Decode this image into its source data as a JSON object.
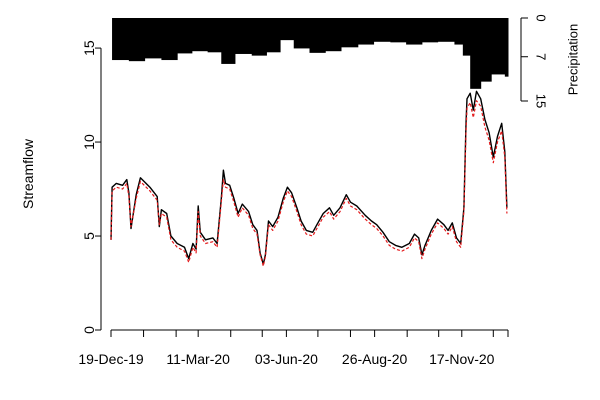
{
  "chart_data": {
    "type": "line",
    "title": "",
    "xlabel": "",
    "ylabel": "Streamflow",
    "ylim": [
      0,
      16.6
    ],
    "yticks": [
      0,
      5,
      10,
      15
    ],
    "x_range": [
      "2019-12-19",
      "2020-12-31"
    ],
    "xticks": [
      {
        "date": "2019-12-19",
        "label": "19-Dec-19"
      },
      {
        "date": "2020-01-19",
        "label": ""
      },
      {
        "date": "2020-02-19",
        "label": ""
      },
      {
        "date": "2020-03-11",
        "label": "11-Mar-20"
      },
      {
        "date": "2020-04-11",
        "label": ""
      },
      {
        "date": "2020-05-11",
        "label": ""
      },
      {
        "date": "2020-06-03",
        "label": "03-Jun-20"
      },
      {
        "date": "2020-07-03",
        "label": ""
      },
      {
        "date": "2020-08-03",
        "label": ""
      },
      {
        "date": "2020-08-26",
        "label": "26-Aug-20"
      },
      {
        "date": "2020-09-26",
        "label": ""
      },
      {
        "date": "2020-10-26",
        "label": ""
      },
      {
        "date": "2020-11-17",
        "label": "17-Nov-20"
      },
      {
        "date": "2020-12-17",
        "label": ""
      },
      {
        "date": "2020-12-31",
        "label": ""
      }
    ],
    "grid": false,
    "legend": "none",
    "series": [
      {
        "style": "solid",
        "color": "#000000",
        "points": [
          {
            "x": "2019-12-19",
            "y": 4.8
          },
          {
            "x": "2019-12-20",
            "y": 7.6
          },
          {
            "x": "2019-12-24",
            "y": 7.8
          },
          {
            "x": "2019-12-30",
            "y": 7.7
          },
          {
            "x": "2020-01-03",
            "y": 8.0
          },
          {
            "x": "2020-01-05",
            "y": 7.3
          },
          {
            "x": "2020-01-07",
            "y": 5.4
          },
          {
            "x": "2020-01-12",
            "y": 7.2
          },
          {
            "x": "2020-01-16",
            "y": 8.1
          },
          {
            "x": "2020-01-25",
            "y": 7.6
          },
          {
            "x": "2020-02-01",
            "y": 7.1
          },
          {
            "x": "2020-02-03",
            "y": 5.5
          },
          {
            "x": "2020-02-05",
            "y": 6.4
          },
          {
            "x": "2020-02-10",
            "y": 6.2
          },
          {
            "x": "2020-02-14",
            "y": 5.0
          },
          {
            "x": "2020-02-20",
            "y": 4.6
          },
          {
            "x": "2020-02-27",
            "y": 4.4
          },
          {
            "x": "2020-03-02",
            "y": 3.8
          },
          {
            "x": "2020-03-06",
            "y": 4.6
          },
          {
            "x": "2020-03-09",
            "y": 4.3
          },
          {
            "x": "2020-03-11",
            "y": 6.6
          },
          {
            "x": "2020-03-13",
            "y": 5.2
          },
          {
            "x": "2020-03-18",
            "y": 4.8
          },
          {
            "x": "2020-03-25",
            "y": 4.9
          },
          {
            "x": "2020-03-29",
            "y": 4.6
          },
          {
            "x": "2020-04-02",
            "y": 7.0
          },
          {
            "x": "2020-04-04",
            "y": 8.5
          },
          {
            "x": "2020-04-06",
            "y": 7.8
          },
          {
            "x": "2020-04-10",
            "y": 7.7
          },
          {
            "x": "2020-04-14",
            "y": 7.0
          },
          {
            "x": "2020-04-18",
            "y": 6.2
          },
          {
            "x": "2020-04-22",
            "y": 6.7
          },
          {
            "x": "2020-04-28",
            "y": 6.3
          },
          {
            "x": "2020-05-02",
            "y": 5.6
          },
          {
            "x": "2020-05-06",
            "y": 5.3
          },
          {
            "x": "2020-05-09",
            "y": 4.1
          },
          {
            "x": "2020-05-12",
            "y": 3.5
          },
          {
            "x": "2020-05-14",
            "y": 4.0
          },
          {
            "x": "2020-05-17",
            "y": 5.8
          },
          {
            "x": "2020-05-21",
            "y": 5.5
          },
          {
            "x": "2020-05-26",
            "y": 6.0
          },
          {
            "x": "2020-05-31",
            "y": 7.0
          },
          {
            "x": "2020-06-04",
            "y": 7.6
          },
          {
            "x": "2020-06-08",
            "y": 7.3
          },
          {
            "x": "2020-06-13",
            "y": 6.5
          },
          {
            "x": "2020-06-17",
            "y": 5.8
          },
          {
            "x": "2020-06-22",
            "y": 5.3
          },
          {
            "x": "2020-06-28",
            "y": 5.2
          },
          {
            "x": "2020-07-02",
            "y": 5.6
          },
          {
            "x": "2020-07-08",
            "y": 6.2
          },
          {
            "x": "2020-07-14",
            "y": 6.5
          },
          {
            "x": "2020-07-18",
            "y": 6.1
          },
          {
            "x": "2020-07-24",
            "y": 6.5
          },
          {
            "x": "2020-07-30",
            "y": 7.2
          },
          {
            "x": "2020-08-03",
            "y": 6.8
          },
          {
            "x": "2020-08-09",
            "y": 6.6
          },
          {
            "x": "2020-08-17",
            "y": 6.1
          },
          {
            "x": "2020-08-23",
            "y": 5.8
          },
          {
            "x": "2020-08-28",
            "y": 5.6
          },
          {
            "x": "2020-09-03",
            "y": 5.2
          },
          {
            "x": "2020-09-09",
            "y": 4.7
          },
          {
            "x": "2020-09-15",
            "y": 4.5
          },
          {
            "x": "2020-09-21",
            "y": 4.4
          },
          {
            "x": "2020-09-28",
            "y": 4.6
          },
          {
            "x": "2020-10-03",
            "y": 5.1
          },
          {
            "x": "2020-10-07",
            "y": 4.9
          },
          {
            "x": "2020-10-10",
            "y": 4.0
          },
          {
            "x": "2020-10-13",
            "y": 4.5
          },
          {
            "x": "2020-10-19",
            "y": 5.3
          },
          {
            "x": "2020-10-25",
            "y": 5.9
          },
          {
            "x": "2020-10-31",
            "y": 5.6
          },
          {
            "x": "2020-11-04",
            "y": 5.3
          },
          {
            "x": "2020-11-08",
            "y": 5.7
          },
          {
            "x": "2020-11-12",
            "y": 4.9
          },
          {
            "x": "2020-11-16",
            "y": 4.6
          },
          {
            "x": "2020-11-19",
            "y": 6.5
          },
          {
            "x": "2020-11-21",
            "y": 11.0
          },
          {
            "x": "2020-11-22",
            "y": 12.3
          },
          {
            "x": "2020-11-25",
            "y": 12.6
          },
          {
            "x": "2020-11-28",
            "y": 11.7
          },
          {
            "x": "2020-12-01",
            "y": 12.7
          },
          {
            "x": "2020-12-05",
            "y": 12.3
          },
          {
            "x": "2020-12-09",
            "y": 11.2
          },
          {
            "x": "2020-12-13",
            "y": 10.5
          },
          {
            "x": "2020-12-17",
            "y": 9.2
          },
          {
            "x": "2020-12-21",
            "y": 10.3
          },
          {
            "x": "2020-12-25",
            "y": 11.0
          },
          {
            "x": "2020-12-28",
            "y": 9.5
          },
          {
            "x": "2020-12-30",
            "y": 6.5
          }
        ]
      },
      {
        "style": "dashed",
        "color": "#e41a1c",
        "points": [
          {
            "x": "2019-12-19",
            "y": 4.8
          },
          {
            "x": "2019-12-20",
            "y": 7.4
          },
          {
            "x": "2019-12-24",
            "y": 7.6
          },
          {
            "x": "2019-12-30",
            "y": 7.5
          },
          {
            "x": "2020-01-03",
            "y": 7.8
          },
          {
            "x": "2020-01-05",
            "y": 7.1
          },
          {
            "x": "2020-01-07",
            "y": 5.5
          },
          {
            "x": "2020-01-12",
            "y": 7.0
          },
          {
            "x": "2020-01-16",
            "y": 7.9
          },
          {
            "x": "2020-01-25",
            "y": 7.4
          },
          {
            "x": "2020-02-01",
            "y": 6.9
          },
          {
            "x": "2020-02-03",
            "y": 5.6
          },
          {
            "x": "2020-02-05",
            "y": 6.2
          },
          {
            "x": "2020-02-10",
            "y": 6.0
          },
          {
            "x": "2020-02-14",
            "y": 4.8
          },
          {
            "x": "2020-02-20",
            "y": 4.4
          },
          {
            "x": "2020-02-27",
            "y": 4.2
          },
          {
            "x": "2020-03-02",
            "y": 3.6
          },
          {
            "x": "2020-03-06",
            "y": 4.4
          },
          {
            "x": "2020-03-09",
            "y": 4.1
          },
          {
            "x": "2020-03-11",
            "y": 6.3
          },
          {
            "x": "2020-03-13",
            "y": 5.0
          },
          {
            "x": "2020-03-18",
            "y": 4.6
          },
          {
            "x": "2020-03-25",
            "y": 4.7
          },
          {
            "x": "2020-03-29",
            "y": 4.4
          },
          {
            "x": "2020-04-02",
            "y": 6.8
          },
          {
            "x": "2020-04-04",
            "y": 8.0
          },
          {
            "x": "2020-04-06",
            "y": 7.6
          },
          {
            "x": "2020-04-10",
            "y": 7.5
          },
          {
            "x": "2020-04-14",
            "y": 6.8
          },
          {
            "x": "2020-04-18",
            "y": 6.0
          },
          {
            "x": "2020-04-22",
            "y": 6.5
          },
          {
            "x": "2020-04-28",
            "y": 6.1
          },
          {
            "x": "2020-05-02",
            "y": 5.4
          },
          {
            "x": "2020-05-06",
            "y": 5.1
          },
          {
            "x": "2020-05-09",
            "y": 4.0
          },
          {
            "x": "2020-05-12",
            "y": 3.4
          },
          {
            "x": "2020-05-14",
            "y": 3.9
          },
          {
            "x": "2020-05-17",
            "y": 5.6
          },
          {
            "x": "2020-05-21",
            "y": 5.3
          },
          {
            "x": "2020-05-26",
            "y": 5.8
          },
          {
            "x": "2020-05-31",
            "y": 6.8
          },
          {
            "x": "2020-06-04",
            "y": 7.4
          },
          {
            "x": "2020-06-08",
            "y": 7.1
          },
          {
            "x": "2020-06-13",
            "y": 6.3
          },
          {
            "x": "2020-06-17",
            "y": 5.6
          },
          {
            "x": "2020-06-22",
            "y": 5.1
          },
          {
            "x": "2020-06-28",
            "y": 5.0
          },
          {
            "x": "2020-07-02",
            "y": 5.4
          },
          {
            "x": "2020-07-08",
            "y": 6.0
          },
          {
            "x": "2020-07-14",
            "y": 6.3
          },
          {
            "x": "2020-07-18",
            "y": 5.9
          },
          {
            "x": "2020-07-24",
            "y": 6.3
          },
          {
            "x": "2020-07-30",
            "y": 7.0
          },
          {
            "x": "2020-08-03",
            "y": 6.6
          },
          {
            "x": "2020-08-09",
            "y": 6.4
          },
          {
            "x": "2020-08-17",
            "y": 5.9
          },
          {
            "x": "2020-08-23",
            "y": 5.6
          },
          {
            "x": "2020-08-28",
            "y": 5.4
          },
          {
            "x": "2020-09-03",
            "y": 5.0
          },
          {
            "x": "2020-09-09",
            "y": 4.5
          },
          {
            "x": "2020-09-15",
            "y": 4.3
          },
          {
            "x": "2020-09-21",
            "y": 4.2
          },
          {
            "x": "2020-09-28",
            "y": 4.4
          },
          {
            "x": "2020-10-03",
            "y": 4.9
          },
          {
            "x": "2020-10-07",
            "y": 4.7
          },
          {
            "x": "2020-10-10",
            "y": 3.8
          },
          {
            "x": "2020-10-13",
            "y": 4.3
          },
          {
            "x": "2020-10-19",
            "y": 5.1
          },
          {
            "x": "2020-10-25",
            "y": 5.7
          },
          {
            "x": "2020-10-31",
            "y": 5.4
          },
          {
            "x": "2020-11-04",
            "y": 5.1
          },
          {
            "x": "2020-11-08",
            "y": 5.5
          },
          {
            "x": "2020-11-12",
            "y": 4.7
          },
          {
            "x": "2020-11-16",
            "y": 4.4
          },
          {
            "x": "2020-11-19",
            "y": 6.3
          },
          {
            "x": "2020-11-21",
            "y": 10.5
          },
          {
            "x": "2020-11-22",
            "y": 11.8
          },
          {
            "x": "2020-11-25",
            "y": 12.1
          },
          {
            "x": "2020-11-28",
            "y": 11.3
          },
          {
            "x": "2020-12-01",
            "y": 12.2
          },
          {
            "x": "2020-12-05",
            "y": 11.9
          },
          {
            "x": "2020-12-09",
            "y": 10.8
          },
          {
            "x": "2020-12-13",
            "y": 10.1
          },
          {
            "x": "2020-12-17",
            "y": 8.9
          },
          {
            "x": "2020-12-21",
            "y": 10.0
          },
          {
            "x": "2020-12-25",
            "y": 10.6
          },
          {
            "x": "2020-12-28",
            "y": 9.2
          },
          {
            "x": "2020-12-30",
            "y": 6.2
          }
        ]
      }
    ],
    "precipitation": {
      "type": "bar",
      "orientation": "inverted (hanging from top)",
      "color": "#000000",
      "axis_label": "Precipitation",
      "ylim": [
        15,
        0
      ],
      "yticks": [
        0,
        7,
        15
      ],
      "points": [
        {
          "x": "2019-12-20",
          "y": 7.6
        },
        {
          "x": "2020-01-05",
          "y": 7.8
        },
        {
          "x": "2020-01-20",
          "y": 7.3
        },
        {
          "x": "2020-02-05",
          "y": 7.6
        },
        {
          "x": "2020-02-20",
          "y": 6.4
        },
        {
          "x": "2020-03-05",
          "y": 6.0
        },
        {
          "x": "2020-03-20",
          "y": 6.2
        },
        {
          "x": "2020-04-02",
          "y": 8.3
        },
        {
          "x": "2020-04-15",
          "y": 6.5
        },
        {
          "x": "2020-05-01",
          "y": 6.8
        },
        {
          "x": "2020-05-15",
          "y": 6.2
        },
        {
          "x": "2020-05-28",
          "y": 4.0
        },
        {
          "x": "2020-06-10",
          "y": 5.5
        },
        {
          "x": "2020-06-25",
          "y": 6.3
        },
        {
          "x": "2020-07-10",
          "y": 6.0
        },
        {
          "x": "2020-07-25",
          "y": 5.3
        },
        {
          "x": "2020-08-10",
          "y": 4.8
        },
        {
          "x": "2020-08-25",
          "y": 4.3
        },
        {
          "x": "2020-09-10",
          "y": 4.4
        },
        {
          "x": "2020-09-25",
          "y": 4.8
        },
        {
          "x": "2020-10-10",
          "y": 4.4
        },
        {
          "x": "2020-10-25",
          "y": 4.3
        },
        {
          "x": "2020-11-10",
          "y": 4.8
        },
        {
          "x": "2020-11-18",
          "y": 6.8
        },
        {
          "x": "2020-11-25",
          "y": 12.8
        },
        {
          "x": "2020-12-05",
          "y": 11.5
        },
        {
          "x": "2020-12-15",
          "y": 10.2
        },
        {
          "x": "2020-12-28",
          "y": 10.6
        }
      ]
    }
  }
}
